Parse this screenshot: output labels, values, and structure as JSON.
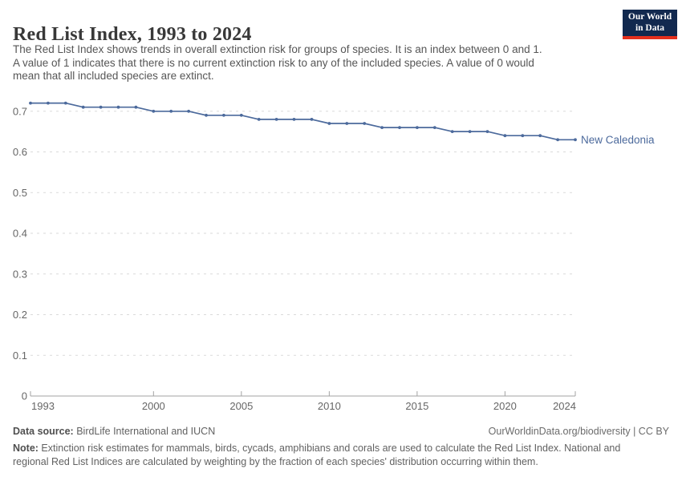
{
  "logo": {
    "line1": "Our World",
    "line2": "in Data"
  },
  "header": {
    "title": "Red List Index, 1993 to 2024",
    "subtitle_lines": [
      "The Red List Index shows trends in overall extinction risk for groups of species. It is an index between 0 and 1.",
      "A value of 1 indicates that there is no current extinction risk to any of the included species. A value of 0 would",
      "mean that all included species are extinct."
    ]
  },
  "chart_data": {
    "type": "line",
    "title": "Red List Index, 1993 to 2024",
    "xlabel": "",
    "ylabel": "",
    "x": [
      1993,
      1994,
      1995,
      1996,
      1997,
      1998,
      1999,
      2000,
      2001,
      2002,
      2003,
      2004,
      2005,
      2006,
      2007,
      2008,
      2009,
      2010,
      2011,
      2012,
      2013,
      2014,
      2015,
      2016,
      2017,
      2018,
      2019,
      2020,
      2021,
      2022,
      2023,
      2024
    ],
    "series": [
      {
        "name": "New Caledonia",
        "values": [
          0.72,
          0.72,
          0.72,
          0.71,
          0.71,
          0.71,
          0.71,
          0.7,
          0.7,
          0.7,
          0.69,
          0.69,
          0.69,
          0.68,
          0.68,
          0.68,
          0.68,
          0.67,
          0.67,
          0.67,
          0.66,
          0.66,
          0.66,
          0.66,
          0.65,
          0.65,
          0.65,
          0.64,
          0.64,
          0.64,
          0.63,
          0.63
        ]
      }
    ],
    "xticks": [
      1993,
      2000,
      2005,
      2010,
      2015,
      2020,
      2024
    ],
    "yticks": [
      0,
      0.1,
      0.2,
      0.3,
      0.4,
      0.5,
      0.6,
      0.7
    ],
    "ylim": [
      0,
      0.73
    ],
    "xlim": [
      1993,
      2024
    ],
    "grid": "horizontal-dashed",
    "legend": "end-of-line-label"
  },
  "footer": {
    "datasource_label": "Data source:",
    "datasource_value": " BirdLife International and IUCN",
    "credit": "OurWorldinData.org/biodiversity | CC BY",
    "note_label": "Note:",
    "note_lines": [
      " Extinction risk estimates for mammals, birds, cycads, amphibians and corals are used to calculate the Red List Index. National and",
      "regional Red List Indices are calculated by weighting by the fraction of each species' distribution occurring within them."
    ]
  },
  "colors": {
    "line": "#4c6a9c",
    "series_label": "#4c6a9c",
    "gridline": "#dadada",
    "axis": "#a3a3a3",
    "tick_text": "#666666",
    "title_text": "#383838",
    "logo_bg": "#12294f",
    "logo_stripe": "#e5301d"
  }
}
